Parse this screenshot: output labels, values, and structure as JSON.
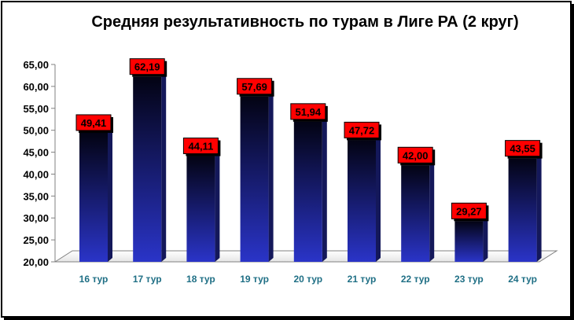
{
  "colors": {
    "bar_top": "#030313",
    "bar_bottom": "#2a34c8",
    "label_fill": "#ff0000",
    "x_tick": "#1f6f85"
  },
  "chart_data": {
    "type": "bar",
    "title": "Средняя результативность по турам в Лиге РА (2 круг)",
    "xlabel": "",
    "ylabel": "",
    "categories": [
      "16 тур",
      "17 тур",
      "18 тур",
      "19 тур",
      "20 тур",
      "21 тур",
      "22 тур",
      "23 тур",
      "24 тур"
    ],
    "values": [
      49.41,
      62.19,
      44.11,
      57.69,
      51.94,
      47.72,
      42.0,
      29.27,
      43.55
    ],
    "value_labels": [
      "49,41",
      "62,19",
      "44,11",
      "57,69",
      "51,94",
      "47,72",
      "42,00",
      "29,27",
      "43,55"
    ],
    "ylim": [
      20,
      65
    ],
    "yticks": [
      "20,00",
      "25,00",
      "30,00",
      "35,00",
      "40,00",
      "45,00",
      "50,00",
      "55,00",
      "60,00",
      "65,00"
    ],
    "grid": false,
    "legend": "none"
  }
}
